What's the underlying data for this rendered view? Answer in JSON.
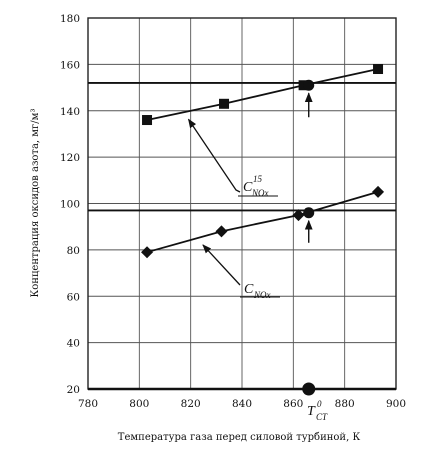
{
  "chart_data": {
    "type": "line",
    "xlabel": "Температура газа перед силовой турбиной, К",
    "ylabel": "Концентрация оксидов азота, мг/м³",
    "xlim": [
      780,
      900
    ],
    "ylim": [
      20,
      180
    ],
    "x_ticks": [
      "780",
      "800",
      "820",
      "840",
      "860",
      "880",
      "900"
    ],
    "y_ticks": [
      "20",
      "40",
      "60",
      "80",
      "100",
      "120",
      "140",
      "160",
      "180"
    ],
    "grid": true,
    "series": [
      {
        "name": "C15NOx",
        "marker": "square",
        "x": [
          803,
          833,
          864,
          893
        ],
        "y": [
          136,
          143,
          151,
          158
        ]
      },
      {
        "name": "CNOx",
        "marker": "diamond",
        "x": [
          803,
          832,
          862,
          893
        ],
        "y": [
          79,
          88,
          95,
          105
        ]
      }
    ],
    "reference_lines": [
      {
        "y": 152
      },
      {
        "y": 97
      },
      {
        "y": 20
      }
    ],
    "design_point": {
      "x": 866,
      "y_upper": 151,
      "y_lower": 96,
      "y_base": 20
    },
    "annotations": {
      "upper_label": {
        "main": "C",
        "sup": "15",
        "sub": "NOx",
        "points_to": [
          818,
          138
        ]
      },
      "lower_label": {
        "main": "C",
        "sub": "NOx",
        "points_to": [
          824,
          83
        ]
      },
      "design_label": {
        "main": "T",
        "sup": "0",
        "sub": "CT"
      }
    }
  }
}
